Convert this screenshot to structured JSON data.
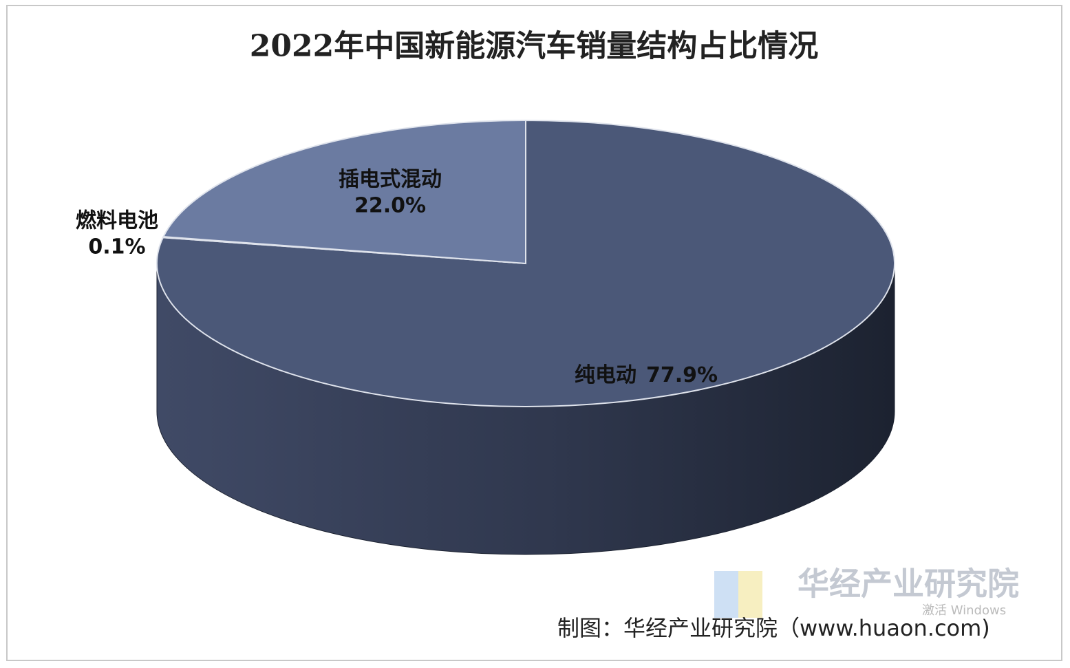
{
  "chart_data": {
    "type": "pie",
    "title": "2022年中国新能源汽车销量结构占比情况",
    "categories": [
      "纯电动",
      "燃料电池",
      "插电式混动"
    ],
    "values": [
      77.9,
      0.1,
      22.0
    ],
    "value_labels": [
      "77.9%",
      "0.1%",
      "22.0%"
    ],
    "colors": [
      "#4b5878",
      "#6a7aa0",
      "#6b7ba1"
    ],
    "source": "制图：华经产业研究院（www.huaon.com)",
    "watermark": "华经产业研究院",
    "system_notice": "激活 Windows"
  }
}
